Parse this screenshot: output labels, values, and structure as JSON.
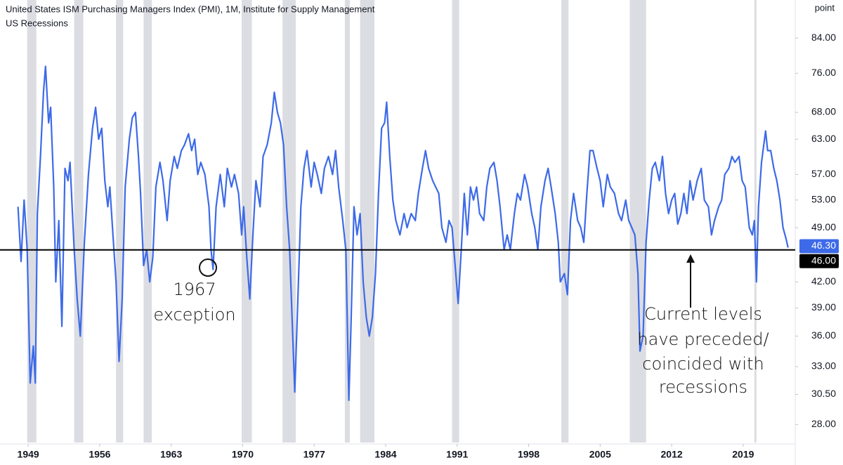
{
  "chart_data": {
    "type": "line",
    "title": "United States ISM Purchasing Managers Index (PMI), 1M, Institute for Supply Management",
    "recession_label": "US Recessions",
    "y_unit": "point",
    "log_scale": true,
    "color": "#3d6ae8",
    "recession_color": "#dcdde2",
    "xlim": [
      1946.24,
      2024.1
    ],
    "ylim": [
      26.6,
      93.6
    ],
    "xticks": [
      1949,
      1956,
      1963,
      1970,
      1977,
      1984,
      1991,
      1998,
      2005,
      2012,
      2019
    ],
    "yticks": [
      {
        "value": 28,
        "label": "28.00"
      },
      {
        "value": 30.5,
        "label": "30.50"
      },
      {
        "value": 33,
        "label": "33.00"
      },
      {
        "value": 36,
        "label": "36.00"
      },
      {
        "value": 39,
        "label": "39.00"
      },
      {
        "value": 42,
        "label": "42.00"
      },
      {
        "value": 49,
        "label": "49.00"
      },
      {
        "value": 53,
        "label": "53.00"
      },
      {
        "value": 57,
        "label": "57.00"
      },
      {
        "value": 63,
        "label": "63.00"
      },
      {
        "value": 68,
        "label": "68.00"
      },
      {
        "value": 76,
        "label": "76.00"
      },
      {
        "value": 84,
        "label": "84.00"
      }
    ],
    "reference_line": {
      "value": 46,
      "label": "46.00"
    },
    "price_label": {
      "value": 46.3,
      "label": "46.30"
    },
    "recessions": [
      [
        1948.9,
        1949.8
      ],
      [
        1953.5,
        1954.4
      ],
      [
        1957.6,
        1958.3
      ],
      [
        1960.3,
        1961.1
      ],
      [
        1969.9,
        1970.9
      ],
      [
        1973.9,
        1975.2
      ],
      [
        1980.0,
        1980.5
      ],
      [
        1981.5,
        1982.9
      ],
      [
        1990.5,
        1991.2
      ],
      [
        2001.2,
        2001.9
      ],
      [
        2007.9,
        2009.5
      ],
      [
        2020.1,
        2020.3
      ]
    ],
    "annotations": [
      {
        "lines": [
          "1967",
          "exception"
        ]
      },
      {
        "lines": [
          "Current levels",
          "have preceded/",
          "coincided with",
          "recessions"
        ]
      }
    ],
    "x": [
      1948.0,
      1948.3,
      1948.6,
      1948.9,
      1949.2,
      1949.5,
      1949.7,
      1949.9,
      1950.2,
      1950.5,
      1950.7,
      1951.0,
      1951.2,
      1951.5,
      1951.7,
      1952.0,
      1952.3,
      1952.6,
      1952.9,
      1953.1,
      1953.5,
      1953.8,
      1954.1,
      1954.5,
      1954.9,
      1955.3,
      1955.6,
      1955.9,
      1956.2,
      1956.5,
      1956.8,
      1957.0,
      1957.3,
      1957.6,
      1957.9,
      1958.2,
      1958.5,
      1958.9,
      1959.2,
      1959.5,
      1959.8,
      1960.0,
      1960.3,
      1960.6,
      1960.9,
      1961.2,
      1961.5,
      1961.9,
      1962.2,
      1962.6,
      1962.9,
      1963.3,
      1963.6,
      1964.0,
      1964.3,
      1964.7,
      1965.0,
      1965.3,
      1965.6,
      1965.9,
      1966.3,
      1966.7,
      1966.9,
      1967.1,
      1967.4,
      1967.8,
      1968.2,
      1968.5,
      1968.9,
      1969.2,
      1969.6,
      1969.9,
      1970.1,
      1970.4,
      1970.7,
      1971.0,
      1971.3,
      1971.7,
      1972.0,
      1972.4,
      1972.8,
      1973.1,
      1973.4,
      1973.7,
      1974.0,
      1974.3,
      1974.6,
      1974.9,
      1975.1,
      1975.4,
      1975.7,
      1976.0,
      1976.3,
      1976.7,
      1977.0,
      1977.3,
      1977.7,
      1978.0,
      1978.4,
      1978.8,
      1979.1,
      1979.4,
      1979.8,
      1980.1,
      1980.4,
      1980.6,
      1980.9,
      1981.2,
      1981.5,
      1981.8,
      1982.1,
      1982.4,
      1982.7,
      1983.0,
      1983.3,
      1983.6,
      1983.9,
      1984.1,
      1984.4,
      1984.7,
      1985.0,
      1985.4,
      1985.8,
      1986.1,
      1986.5,
      1986.9,
      1987.2,
      1987.6,
      1987.9,
      1988.2,
      1988.6,
      1988.9,
      1989.2,
      1989.5,
      1989.9,
      1990.2,
      1990.5,
      1990.8,
      1991.1,
      1991.4,
      1991.7,
      1992.0,
      1992.3,
      1992.6,
      1992.9,
      1993.2,
      1993.6,
      1993.9,
      1994.2,
      1994.6,
      1994.9,
      1995.2,
      1995.6,
      1995.9,
      1996.2,
      1996.6,
      1996.9,
      1997.2,
      1997.6,
      1997.9,
      1998.3,
      1998.6,
      1998.9,
      1999.2,
      1999.6,
      1999.9,
      2000.2,
      2000.6,
      2000.9,
      2001.1,
      2001.5,
      2001.8,
      2002.1,
      2002.4,
      2002.8,
      2003.1,
      2003.4,
      2003.7,
      2004.0,
      2004.3,
      2004.7,
      2005.0,
      2005.3,
      2005.7,
      2006.0,
      2006.4,
      2006.8,
      2007.1,
      2007.5,
      2007.8,
      2008.1,
      2008.4,
      2008.7,
      2008.9,
      2009.2,
      2009.5,
      2009.8,
      2010.1,
      2010.4,
      2010.8,
      2011.1,
      2011.4,
      2011.7,
      2012.0,
      2012.3,
      2012.6,
      2012.9,
      2013.2,
      2013.5,
      2013.8,
      2014.1,
      2014.5,
      2014.9,
      2015.2,
      2015.6,
      2015.9,
      2016.2,
      2016.6,
      2016.9,
      2017.2,
      2017.6,
      2017.9,
      2018.2,
      2018.6,
      2018.9,
      2019.2,
      2019.6,
      2019.9,
      2020.1,
      2020.3,
      2020.5,
      2020.8,
      2021.2,
      2021.4,
      2021.7,
      2022.0,
      2022.3,
      2022.6,
      2022.9,
      2023.2,
      2023.4
    ],
    "values": [
      52,
      44.5,
      53,
      46,
      31.5,
      35,
      31.5,
      51,
      60,
      72,
      77.5,
      66,
      69,
      55,
      42,
      50,
      37,
      58,
      56,
      59,
      46,
      40,
      36,
      47,
      57,
      65,
      69,
      63,
      65,
      56,
      52,
      55,
      48,
      42,
      33.5,
      40,
      55,
      63,
      67,
      68,
      60,
      54,
      44,
      46,
      42,
      45,
      55,
      59,
      56,
      50,
      56,
      60,
      58,
      61,
      62,
      64,
      61,
      63,
      57,
      59,
      57,
      52,
      46,
      43.5,
      52,
      57,
      52,
      58,
      55,
      57,
      54,
      48,
      52,
      45,
      40,
      48,
      56,
      52,
      60,
      62,
      66,
      72,
      68,
      66,
      62,
      52,
      46,
      36,
      30.7,
      40,
      52,
      58,
      61,
      55,
      59,
      57,
      54,
      58,
      60,
      57,
      61,
      55,
      50,
      46,
      30,
      37,
      52,
      48,
      51,
      42,
      38,
      36,
      38,
      43,
      54,
      65,
      66,
      70,
      60,
      53,
      50,
      48,
      51,
      49,
      51,
      50,
      54,
      58,
      61,
      58,
      56,
      55,
      54,
      49,
      47,
      50,
      49,
      44,
      39.5,
      46,
      54,
      48,
      55,
      53,
      55,
      51,
      50,
      55,
      58,
      59,
      56,
      52,
      46,
      48,
      46,
      51,
      54,
      53,
      57,
      55,
      51,
      49,
      46,
      52,
      56,
      58,
      55,
      51,
      47,
      42,
      43,
      40.5,
      50,
      54,
      50,
      49,
      47,
      54,
      61,
      61,
      58,
      56,
      52,
      57,
      55,
      54,
      51,
      50,
      53,
      50,
      49,
      48,
      43,
      34.5,
      36,
      47,
      53,
      58,
      59,
      56,
      60,
      54,
      51,
      53,
      54,
      49.5,
      51,
      54,
      51,
      56,
      53,
      56,
      58,
      53,
      52,
      48,
      50,
      52,
      53,
      57,
      58,
      60,
      59,
      60,
      56,
      55,
      49,
      48,
      50,
      42,
      52,
      59,
      64.5,
      61,
      61,
      58,
      56,
      53,
      49,
      47.5,
      46.3
    ]
  }
}
